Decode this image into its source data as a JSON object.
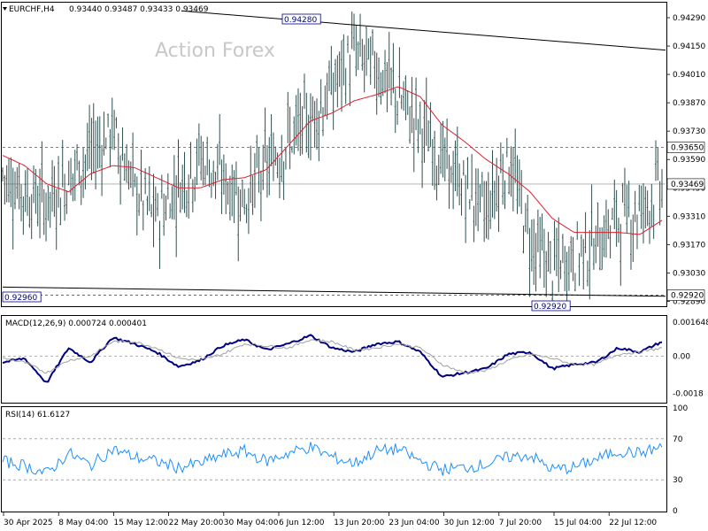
{
  "header": {
    "symbol": "EURCHF,H4",
    "ohlc": "0.93440 0.93487 0.93433 0.93469"
  },
  "watermark": "Action Forex",
  "colors": {
    "candles": "#2f4f4f",
    "ma": "#e0202f",
    "macd_main": "#000080",
    "macd_signal": "#a0a0a0",
    "rsi": "#1e90ff",
    "trendline": "#000000",
    "price_box_bg": "#ffffff",
    "box_border": "#000080"
  },
  "chart_data": [
    {
      "type": "candlestick",
      "pane": "price",
      "title": "EURCHF,H4",
      "ylim": [
        0.9287,
        0.9436
      ],
      "yticks": [
        "0.94290",
        "0.94150",
        "0.94010",
        "0.93870",
        "0.93730",
        "0.93590",
        "0.93450",
        "0.93310",
        "0.93170",
        "0.93030",
        "0.92890"
      ],
      "ytick_values": [
        0.9429,
        0.9415,
        0.9401,
        0.9387,
        0.9373,
        0.9359,
        0.9345,
        0.9331,
        0.9317,
        0.9303,
        0.9289
      ],
      "xticks": [
        "30 Apr 2025",
        "8 May 04:00",
        "15 May 12:00",
        "22 May 20:00",
        "30 May 04:00",
        "6 Jun 12:00",
        "13 Jun 20:00",
        "23 Jun 04:00",
        "30 Jun 12:00",
        "7 Jul 20:00",
        "15 Jul 04:00",
        "22 Jul 12:00"
      ],
      "close_anchors": [
        0.9352,
        0.9342,
        0.9338,
        0.935,
        0.9362,
        0.9374,
        0.9345,
        0.933,
        0.9347,
        0.936,
        0.9349,
        0.9339,
        0.9355,
        0.9368,
        0.9378,
        0.9394,
        0.9412,
        0.9405,
        0.939,
        0.9375,
        0.9358,
        0.9345,
        0.9334,
        0.936,
        0.932,
        0.9305,
        0.9312,
        0.9318,
        0.933,
        0.9334,
        0.9347
      ],
      "moving_average": [
        0.9361,
        0.9356,
        0.9347,
        0.9343,
        0.9352,
        0.9356,
        0.9355,
        0.935,
        0.9345,
        0.9345,
        0.9349,
        0.935,
        0.9354,
        0.9366,
        0.9378,
        0.9382,
        0.9388,
        0.9391,
        0.9395,
        0.939,
        0.9376,
        0.9368,
        0.9359,
        0.9352,
        0.9343,
        0.933,
        0.9323,
        0.9323,
        0.9323,
        0.9322,
        0.9329
      ],
      "annotations": {
        "high_label": "0.94280",
        "low_left_label": "0.92960",
        "low_mid_label": "0.92920",
        "level_label": "0.93650",
        "current_label": "0.93469",
        "low_right_label": "0.92920"
      },
      "levels": [
        0.9365,
        0.9292
      ]
    },
    {
      "type": "line",
      "pane": "macd",
      "title": "MACD(12,26,9) 0.000724 0.000401",
      "ylim": [
        -0.0022,
        0.0019
      ],
      "yticks": [
        "0.001648",
        "0.00",
        "-0.0018"
      ],
      "ytick_values": [
        0.001648,
        0.0,
        -0.0018
      ],
      "series": [
        {
          "role": "main",
          "anchors": [
            -0.0003,
            -0.0001,
            -0.0013,
            0.0004,
            -0.0003,
            0.0009,
            0.0006,
            0.0002,
            -0.0005,
            -0.0002,
            0.0005,
            0.0008,
            0.0003,
            0.0006,
            0.001,
            0.0004,
            0.0002,
            0.0006,
            0.0007,
            0.0002,
            -0.001,
            -0.0008,
            -0.0006,
            0.0001,
            0.0002,
            -0.0006,
            -0.0004,
            -0.0003,
            0.0004,
            0.0002,
            0.0007
          ]
        },
        {
          "role": "signal",
          "anchors": [
            -0.0001,
            -0.0003,
            -0.0008,
            -0.0002,
            0.0,
            0.0007,
            0.0007,
            0.0004,
            -0.0001,
            -0.0002,
            0.0001,
            0.0006,
            0.0005,
            0.0004,
            0.0008,
            0.0007,
            0.0003,
            0.0004,
            0.0006,
            0.0004,
            -0.0004,
            -0.0008,
            -0.0007,
            -0.0002,
            0.0001,
            -0.0001,
            -0.0004,
            -0.0004,
            0.0001,
            0.0002,
            0.0004
          ]
        }
      ]
    },
    {
      "type": "line",
      "pane": "rsi",
      "title": "RSI(14) 61.6127",
      "ylim": [
        0,
        100
      ],
      "yticks": [
        "100",
        "70",
        "30",
        "0"
      ],
      "ytick_values": [
        100,
        70,
        30,
        0
      ],
      "levels": [
        70,
        30
      ],
      "series": [
        {
          "role": "rsi",
          "anchors": [
            48,
            44,
            36,
            56,
            44,
            60,
            52,
            48,
            42,
            46,
            54,
            58,
            48,
            56,
            62,
            52,
            46,
            58,
            60,
            48,
            40,
            42,
            45,
            52,
            54,
            40,
            42,
            50,
            58,
            56,
            62
          ]
        }
      ]
    }
  ]
}
